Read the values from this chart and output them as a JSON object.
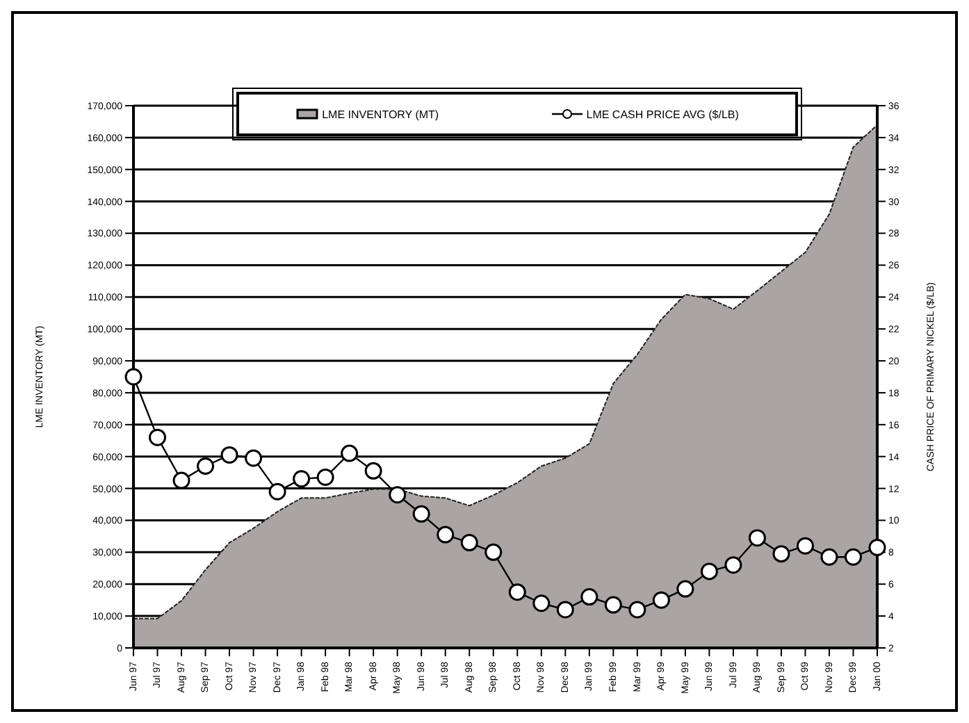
{
  "chart_data": {
    "type": "area",
    "ylabel": "LME INVENTORY (MT)",
    "y2label": "CASH PRICE OF PRIMARY NICKEL ($/LB)",
    "categories": [
      "Jun 97",
      "Jul 97",
      "Aug 97",
      "Sep 97",
      "Oct 97",
      "Nov 97",
      "Dec 97",
      "Jan 98",
      "Feb 98",
      "Mar 98",
      "Apr 98",
      "May 98",
      "Jun 98",
      "Jul 98",
      "Aug 98",
      "Sep 98",
      "Oct 98",
      "Nov 98",
      "Dec 98",
      "Jan 99",
      "Feb 99",
      "Mar 99",
      "Apr 99",
      "May 99",
      "Jun 99",
      "Jul 99",
      "Aug 99",
      "Sep 99",
      "Oct 99",
      "Nov 99",
      "Dec 99",
      "Jan 00"
    ],
    "series": [
      {
        "name": "LME INVENTORY (MT)",
        "color": "#aaa4a4",
        "values": [
          9200,
          9200,
          14800,
          24500,
          33000,
          37500,
          42700,
          47000,
          47000,
          48500,
          49800,
          49800,
          47600,
          47000,
          44600,
          47900,
          51800,
          57000,
          59500,
          64000,
          82900,
          92000,
          103000,
          110800,
          109500,
          106200,
          112000,
          118000,
          124000,
          136000,
          157000,
          164000
        ]
      },
      {
        "name": "LME CASH PRICE AVG ($/LB)",
        "type": "line",
        "axis": "y2",
        "color": "#000000",
        "marker": "circle",
        "values": [
          19.0,
          15.2,
          12.5,
          13.4,
          14.1,
          13.9,
          11.8,
          12.6,
          12.7,
          14.2,
          13.1,
          11.6,
          10.4,
          9.1,
          8.6,
          8.0,
          5.5,
          4.8,
          4.4,
          5.2,
          4.7,
          4.4,
          5.0,
          5.7,
          6.8,
          7.2,
          8.9,
          7.9,
          8.4,
          7.7,
          7.7,
          8.3
        ]
      }
    ],
    "ylim": [
      0,
      170000
    ],
    "yticks": [
      0,
      {
        "value": 10000,
        "label": "10,000"
      },
      {
        "value": 20000,
        "label": "20,000"
      },
      {
        "value": 30000,
        "label": "30,000"
      },
      {
        "value": 40000,
        "label": "40,000"
      },
      {
        "value": 50000,
        "label": "50,000"
      },
      {
        "value": 60000,
        "label": "60,000"
      },
      {
        "value": 70000,
        "label": "70,000"
      },
      {
        "value": 80000,
        "label": "80,000"
      },
      {
        "value": 90000,
        "label": "90,000"
      },
      {
        "value": 100000,
        "label": "100,000"
      },
      {
        "value": 110000,
        "label": "110,000"
      },
      {
        "value": 120000,
        "label": "120,000"
      },
      {
        "value": 130000,
        "label": "130,000"
      },
      {
        "value": 140000,
        "label": "140,000"
      },
      {
        "value": 150000,
        "label": "150,000"
      },
      {
        "value": 160000,
        "label": "160,000"
      },
      {
        "value": 170000,
        "label": "170,000"
      }
    ],
    "y2lim": [
      2,
      36
    ],
    "y2ticks": [
      2,
      4,
      6,
      8,
      10,
      12,
      14,
      16,
      18,
      20,
      22,
      24,
      26,
      28,
      30,
      32,
      34,
      36
    ],
    "grid": "y",
    "legend": "top",
    "line_style": "solid"
  }
}
